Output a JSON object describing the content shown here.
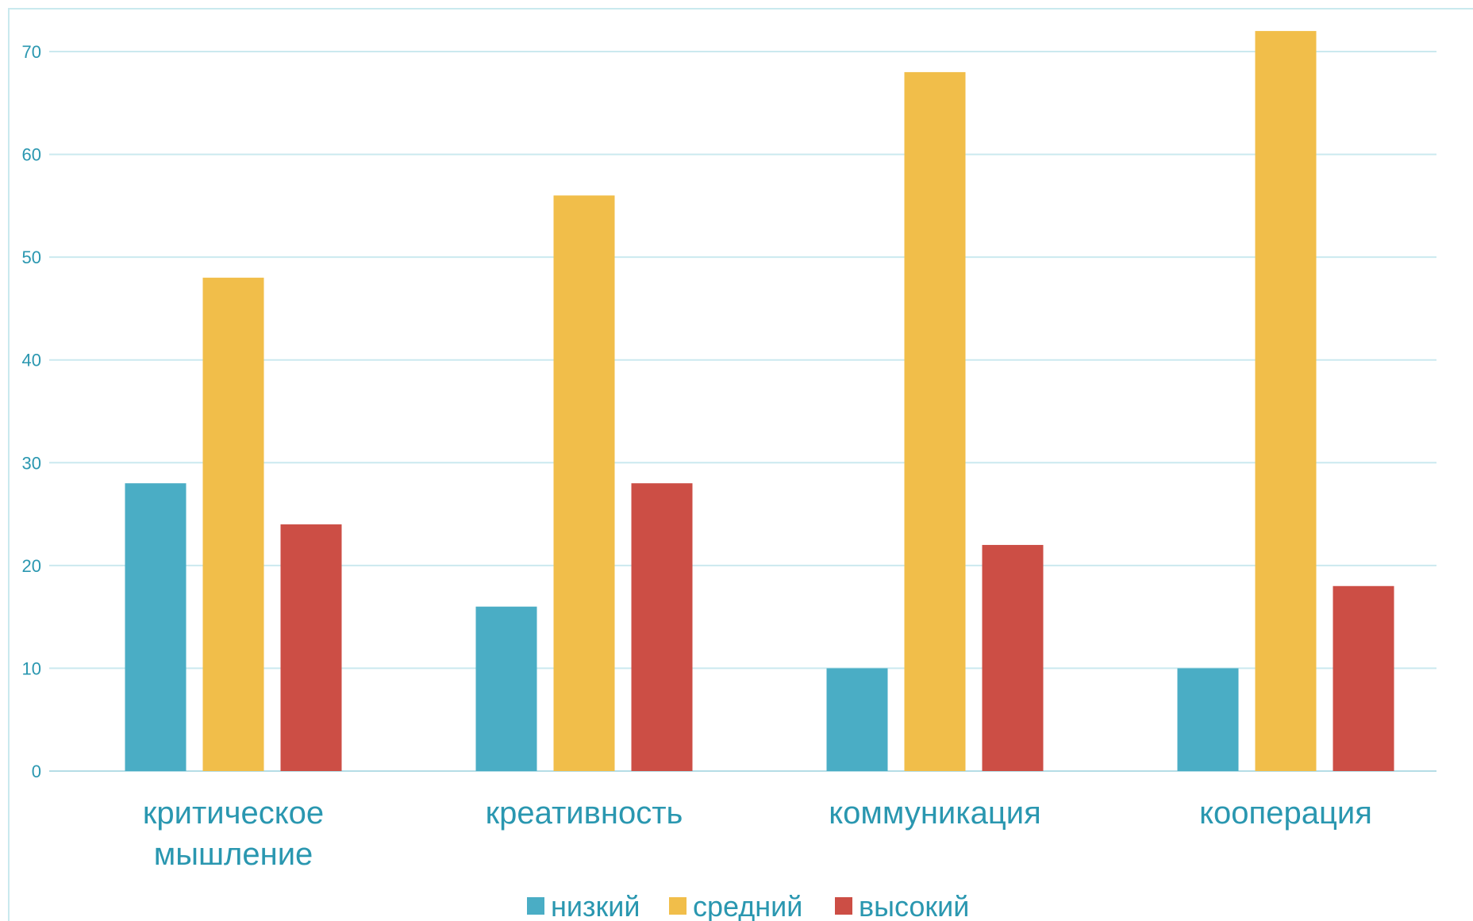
{
  "chart_data": {
    "type": "bar",
    "title": "",
    "xlabel": "",
    "ylabel": "",
    "categories": [
      [
        "критическое",
        "мышление"
      ],
      [
        "креативность"
      ],
      [
        "коммуникация"
      ],
      [
        "кооперация"
      ]
    ],
    "series": [
      {
        "name": "низкий",
        "color": "#4aadc5",
        "values": [
          28,
          16,
          10,
          10
        ]
      },
      {
        "name": "средний",
        "color": "#f1be4a",
        "values": [
          48,
          56,
          68,
          72
        ]
      },
      {
        "name": "высокий",
        "color": "#cc4e45",
        "values": [
          24,
          28,
          22,
          18
        ]
      }
    ],
    "ylim": [
      0,
      70
    ],
    "yticks": [
      0,
      10,
      20,
      30,
      40,
      50,
      60,
      70
    ],
    "grid": true,
    "legend_position": "bottom"
  }
}
